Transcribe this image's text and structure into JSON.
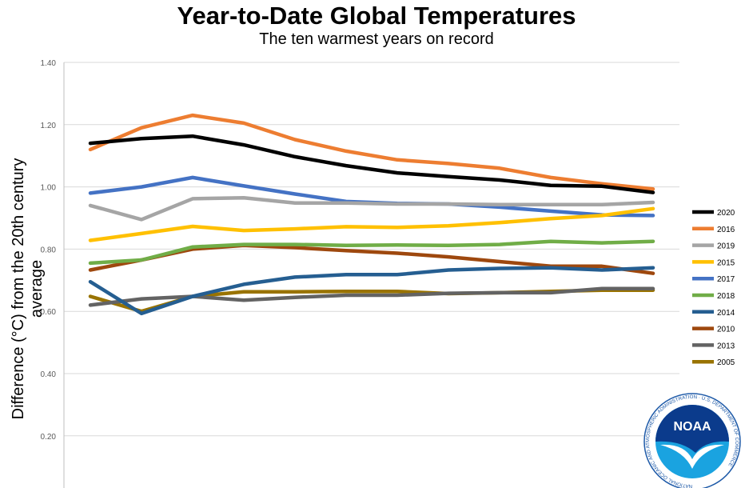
{
  "chart_data": {
    "type": "line",
    "title": "Year-to-Date Global Temperatures",
    "subtitle": "The ten warmest years on record",
    "xlabel": "",
    "ylabel": "Difference (°C) from the 20th century average",
    "ylim": [
      0.2,
      1.4
    ],
    "yticks": [
      "0.20",
      "0.40",
      "0.60",
      "0.80",
      "1.00",
      "1.20",
      "1.40"
    ],
    "x": [
      1,
      2,
      3,
      4,
      5,
      6,
      7,
      8,
      9,
      10,
      11,
      12
    ],
    "grid": true,
    "legend_position": "right",
    "series": [
      {
        "name": "2020",
        "color": "#000000",
        "values": [
          1.14,
          1.155,
          1.163,
          1.135,
          1.097,
          1.068,
          1.045,
          1.033,
          1.022,
          1.005,
          1.002,
          0.982
        ]
      },
      {
        "name": "2016",
        "color": "#ED7D31",
        "values": [
          1.12,
          1.19,
          1.23,
          1.205,
          1.152,
          1.115,
          1.087,
          1.075,
          1.06,
          1.03,
          1.01,
          0.993
        ]
      },
      {
        "name": "2019",
        "color": "#A5A5A5",
        "values": [
          0.94,
          0.895,
          0.962,
          0.965,
          0.948,
          0.948,
          0.945,
          0.945,
          0.943,
          0.943,
          0.943,
          0.95
        ]
      },
      {
        "name": "2015",
        "color": "#FFC000",
        "values": [
          0.828,
          0.85,
          0.873,
          0.86,
          0.865,
          0.872,
          0.87,
          0.875,
          0.885,
          0.898,
          0.908,
          0.93
        ]
      },
      {
        "name": "2017",
        "color": "#4472C4",
        "values": [
          0.98,
          1.0,
          1.03,
          1.003,
          0.977,
          0.953,
          0.947,
          0.945,
          0.935,
          0.922,
          0.91,
          0.908
        ]
      },
      {
        "name": "2018",
        "color": "#70AD47",
        "values": [
          0.755,
          0.765,
          0.807,
          0.815,
          0.815,
          0.812,
          0.813,
          0.812,
          0.815,
          0.825,
          0.82,
          0.825
        ]
      },
      {
        "name": "2014",
        "color": "#255E91",
        "values": [
          0.695,
          0.593,
          0.648,
          0.687,
          0.71,
          0.718,
          0.718,
          0.733,
          0.738,
          0.74,
          0.733,
          0.74
        ]
      },
      {
        "name": "2010",
        "color": "#9E480E",
        "values": [
          0.733,
          0.765,
          0.8,
          0.812,
          0.805,
          0.795,
          0.787,
          0.775,
          0.76,
          0.745,
          0.745,
          0.722
        ]
      },
      {
        "name": "2013",
        "color": "#636363",
        "values": [
          0.62,
          0.64,
          0.648,
          0.636,
          0.645,
          0.652,
          0.652,
          0.658,
          0.66,
          0.66,
          0.673,
          0.673
        ]
      },
      {
        "name": "2005",
        "color": "#997300",
        "values": [
          0.648,
          0.6,
          0.648,
          0.663,
          0.663,
          0.664,
          0.664,
          0.657,
          0.66,
          0.664,
          0.668,
          0.668
        ]
      }
    ]
  },
  "logo": {
    "text": "NOAA",
    "ring_text": "NATIONAL OCEANIC AND ATMOSPHERIC ADMINISTRATION · U.S. DEPARTMENT OF COMMERCE"
  }
}
